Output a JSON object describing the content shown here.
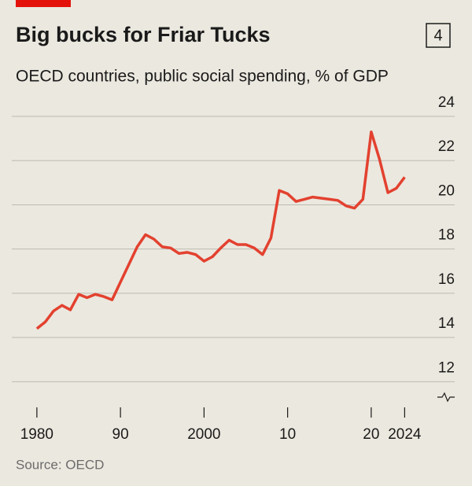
{
  "chart_data": {
    "type": "line",
    "title": "Big bucks for Friar Tucks",
    "badge": "4",
    "subtitle": "OECD countries, public social spending, % of GDP",
    "source": "Source: OECD",
    "x": [
      1980,
      1981,
      1982,
      1983,
      1984,
      1985,
      1986,
      1987,
      1988,
      1989,
      1990,
      1991,
      1992,
      1993,
      1994,
      1995,
      1996,
      1997,
      1998,
      1999,
      2000,
      2001,
      2002,
      2003,
      2004,
      2005,
      2006,
      2007,
      2008,
      2009,
      2010,
      2011,
      2012,
      2013,
      2014,
      2015,
      2016,
      2017,
      2018,
      2019,
      2020,
      2021,
      2022,
      2023,
      2024
    ],
    "series": [
      {
        "color": "#e3412f",
        "values": [
          14.4,
          14.7,
          15.2,
          15.45,
          15.25,
          15.95,
          15.8,
          15.95,
          15.85,
          15.7,
          16.5,
          17.3,
          18.1,
          18.65,
          18.45,
          18.1,
          18.05,
          17.8,
          17.85,
          17.75,
          17.45,
          17.65,
          18.05,
          18.4,
          18.2,
          18.2,
          18.05,
          17.75,
          18.5,
          20.65,
          20.5,
          20.15,
          20.25,
          20.35,
          20.3,
          20.25,
          20.2,
          19.95,
          19.85,
          20.25,
          23.3,
          22.05,
          20.55,
          20.75,
          21.25
        ]
      }
    ],
    "xlim": [
      1977,
      2025
    ],
    "xticks": [
      1980,
      {
        "value": 1990,
        "label": "90"
      },
      2000,
      {
        "value": 2010,
        "label": "10"
      },
      {
        "value": 2020,
        "label": "20"
      },
      2024
    ],
    "ylim": [
      11.3,
      24
    ],
    "yticks": [
      12,
      14,
      16,
      18,
      20,
      22,
      24
    ],
    "grid": true
  }
}
